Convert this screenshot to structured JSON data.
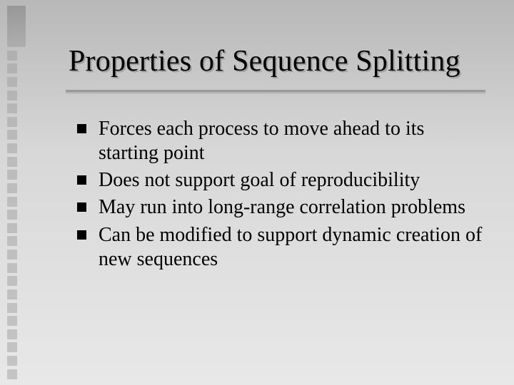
{
  "slide": {
    "title": "Properties of Sequence Splitting",
    "bullets": [
      "Forces each process to move ahead to its starting point",
      "Does not support goal of reproducibility",
      "May run into long-range correlation problems",
      "Can be modified to support dynamic creation of new sequences"
    ]
  },
  "style": {
    "background_gradient": [
      "#b8b8b8",
      "#d8d8d8",
      "#e8e8e8"
    ],
    "title_fontsize": 42,
    "bullet_fontsize": 28,
    "text_color": "#000000",
    "divider_color": "#999999",
    "bullet_marker": "square",
    "decor": {
      "tall_count": 1,
      "square_count": 28,
      "square_color": "#9a9a9a",
      "square_opacity": 0.45
    }
  }
}
